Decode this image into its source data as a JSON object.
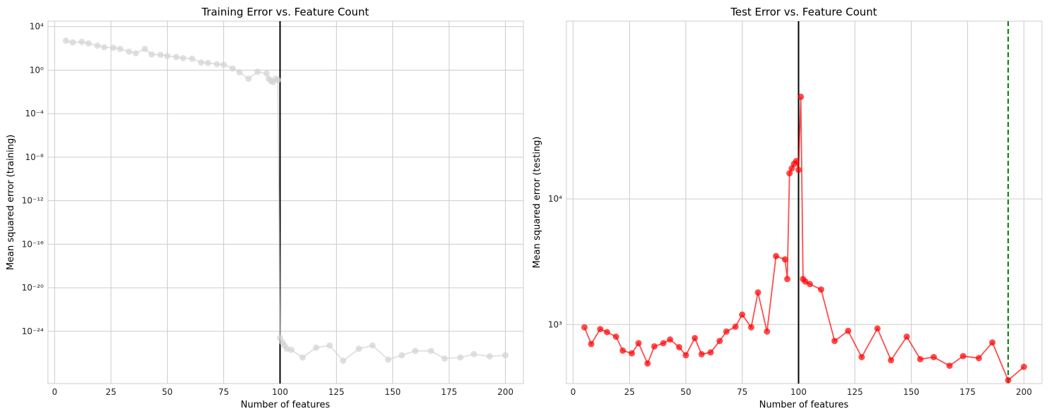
{
  "chart_data": [
    {
      "type": "line",
      "title": "Training Error vs. Feature Count",
      "xlabel": "Number of features",
      "ylabel": "Mean squared error (training)",
      "yscale": "log",
      "xlim": [
        -3,
        208
      ],
      "ylim_exp": [
        -28.8,
        4.5
      ],
      "xticks": [
        "0",
        "25",
        "50",
        "75",
        "100",
        "125",
        "150",
        "175",
        "200"
      ],
      "xtick_values": [
        0,
        25,
        50,
        75,
        100,
        125,
        150,
        175,
        200
      ],
      "ytick_exponents": [
        4,
        0,
        -4,
        -8,
        -12,
        -16,
        -20,
        -24
      ],
      "ytick_labels": [
        "10⁴",
        "10⁰",
        "10⁻⁴",
        "10⁻⁸",
        "10⁻¹²",
        "10⁻¹⁶",
        "10⁻²⁰",
        "10⁻²⁴"
      ],
      "grid": true,
      "vlines": [
        {
          "x": 100,
          "color": "#000000",
          "style": "solid"
        }
      ],
      "series": [
        {
          "color": "#d3d3d3",
          "x": [
            5,
            8,
            12,
            15,
            19,
            22,
            26,
            29,
            33,
            36,
            40,
            43,
            47,
            50,
            54,
            57,
            61,
            65,
            68,
            72,
            75,
            79,
            82,
            86,
            90,
            94,
            95,
            96,
            97,
            98,
            99,
            100,
            101,
            102,
            103,
            105,
            110,
            116,
            122,
            128,
            135,
            141,
            148,
            154,
            160,
            167,
            173,
            180,
            186,
            193,
            200
          ],
          "log10_y": [
            2.7,
            2.55,
            2.6,
            2.45,
            2.25,
            2.1,
            2.05,
            1.95,
            1.7,
            1.55,
            1.95,
            1.45,
            1.4,
            1.3,
            1.2,
            1.1,
            1.05,
            0.7,
            0.65,
            0.55,
            0.5,
            0.15,
            -0.2,
            -0.8,
            -0.15,
            -0.3,
            -0.8,
            -1.0,
            -1.1,
            -0.8,
            -0.9,
            -24.6,
            -25.0,
            -25.3,
            -25.6,
            -25.7,
            -26.4,
            -25.5,
            -25.3,
            -26.7,
            -25.6,
            -25.3,
            -26.6,
            -26.2,
            -25.8,
            -25.8,
            -26.5,
            -26.4,
            -26.1,
            -26.3,
            -26.2
          ]
        }
      ]
    },
    {
      "type": "line",
      "title": "Test Error vs. Feature Count",
      "xlabel": "Number of features",
      "ylabel": "Mean squared error (testing)",
      "yscale": "log",
      "xlim": [
        -3,
        208
      ],
      "ylim_exp": [
        2.53,
        5.415
      ],
      "xticks": [
        "0",
        "25",
        "50",
        "75",
        "100",
        "125",
        "150",
        "175",
        "200"
      ],
      "xtick_values": [
        0,
        25,
        50,
        75,
        100,
        125,
        150,
        175,
        200
      ],
      "ytick_exponents": [
        4,
        3
      ],
      "ytick_labels": [
        "10⁴",
        "10³"
      ],
      "grid": true,
      "vlines": [
        {
          "x": 100,
          "color": "#000000",
          "style": "solid"
        },
        {
          "x": 193,
          "color": "#008000",
          "style": "dashed"
        }
      ],
      "series": [
        {
          "color": "#ff0000",
          "x": [
            5,
            8,
            12,
            15,
            19,
            22,
            26,
            29,
            33,
            36,
            40,
            43,
            47,
            50,
            54,
            57,
            61,
            65,
            68,
            72,
            75,
            79,
            82,
            86,
            90,
            94,
            95,
            96,
            97,
            98,
            99,
            100,
            101,
            102,
            103,
            105,
            110,
            116,
            122,
            128,
            135,
            141,
            148,
            154,
            160,
            167,
            173,
            180,
            186,
            193,
            200
          ],
          "y": [
            950,
            700,
            920,
            870,
            800,
            620,
            590,
            710,
            490,
            670,
            710,
            760,
            660,
            570,
            780,
            580,
            600,
            740,
            880,
            960,
            1200,
            950,
            1800,
            880,
            3500,
            3300,
            2300,
            16000,
            17500,
            19000,
            20000,
            17000,
            65000,
            2300,
            2200,
            2100,
            1900,
            740,
            890,
            550,
            930,
            520,
            800,
            530,
            550,
            470,
            560,
            540,
            720,
            360,
            460
          ]
        }
      ]
    }
  ]
}
